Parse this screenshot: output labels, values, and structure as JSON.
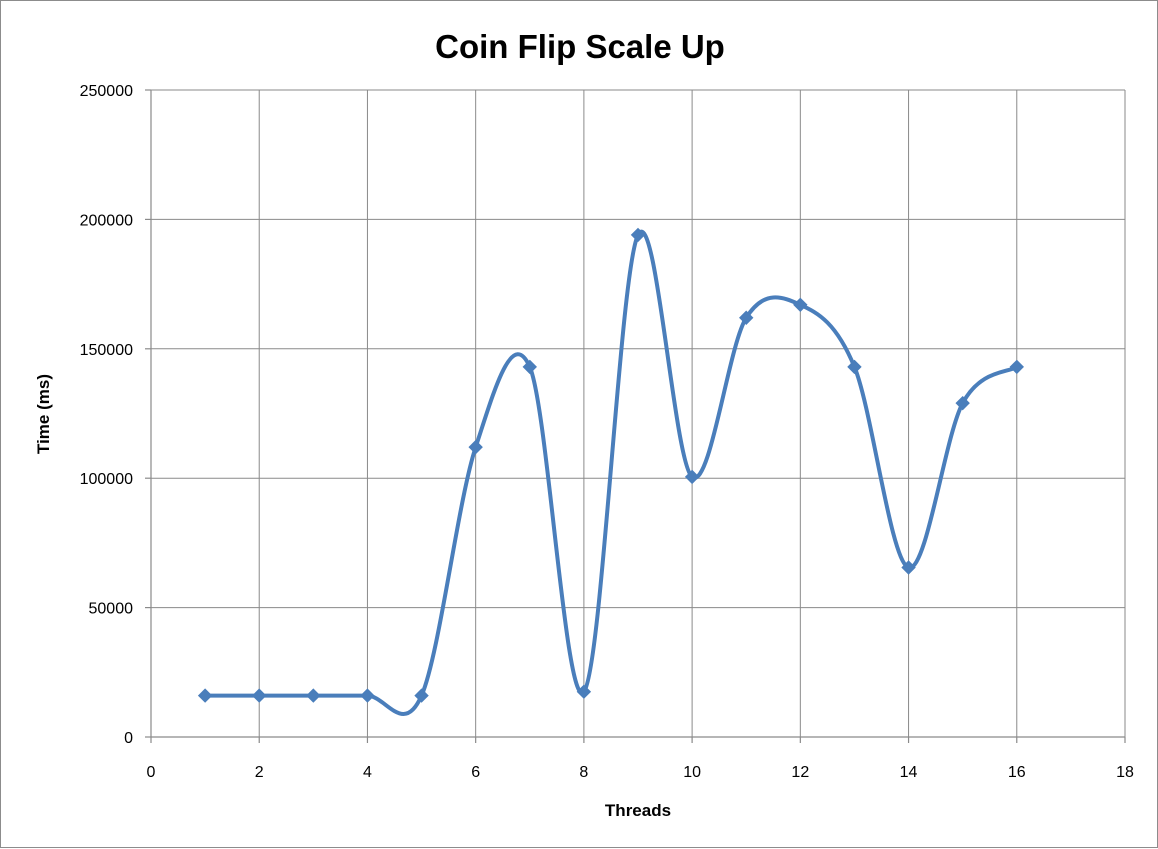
{
  "chart_data": {
    "type": "line",
    "title": "Coin Flip Scale Up",
    "xlabel": "Threads",
    "ylabel": "Time (ms)",
    "xlim": [
      0,
      18
    ],
    "ylim": [
      0,
      250000
    ],
    "xticks": [
      0,
      2,
      4,
      6,
      8,
      10,
      12,
      14,
      16,
      18
    ],
    "yticks": [
      0,
      50000,
      100000,
      150000,
      200000,
      250000
    ],
    "grid": true,
    "smooth": true,
    "marker": "diamond",
    "line_color": "#4a7ebb",
    "marker_color": "#4a7ebb",
    "series": [
      {
        "x": [
          1,
          2,
          3,
          4,
          5,
          6,
          7,
          8,
          9,
          10,
          11,
          12,
          13,
          14,
          15,
          16
        ],
        "values": [
          16000,
          16000,
          16000,
          16000,
          16000,
          112000,
          143000,
          17500,
          194000,
          100500,
          162000,
          167000,
          143000,
          65500,
          129000,
          143000
        ]
      }
    ]
  }
}
